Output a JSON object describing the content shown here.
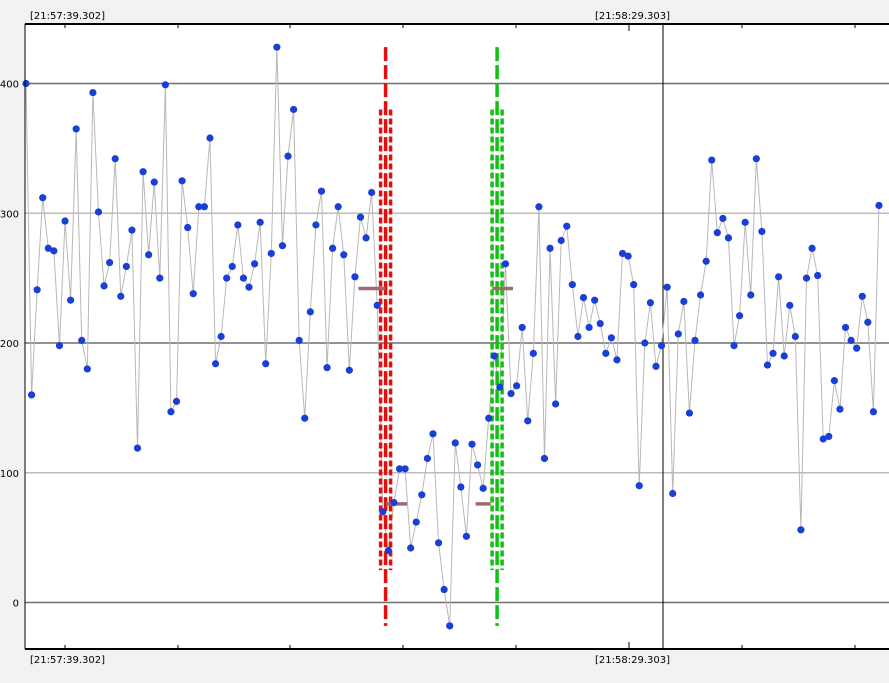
{
  "chart_data": {
    "type": "scatter",
    "connected": true,
    "title": "",
    "xlabel": "",
    "ylabel": "",
    "ylim": [
      -40,
      445
    ],
    "grid": true,
    "x_time_labels": {
      "top": [
        "[21:57:39.302]",
        "[21:58:29.303]"
      ],
      "bottom": [
        "[21:57:39.302]",
        "[21:58:29.303]"
      ]
    },
    "y_ticks": [
      0,
      100,
      200,
      300,
      400
    ],
    "colors": {
      "points": "#1a3fd6",
      "line": "#b8b8b8",
      "left_change_marker": "#e01010",
      "right_change_marker": "#12c012",
      "segment_mean": "#9b6e6e"
    },
    "series": [
      {
        "values": [
          400,
          160,
          241,
          312,
          273,
          271,
          198,
          294,
          233,
          365,
          202,
          180,
          393,
          301,
          244,
          262,
          342,
          236,
          259,
          287,
          119,
          332,
          268,
          324,
          250,
          399,
          147,
          155,
          325,
          289,
          238,
          305,
          305,
          358,
          184,
          205,
          250,
          259,
          291,
          250,
          243,
          261,
          293,
          184,
          269,
          428,
          275,
          344,
          380,
          202,
          142,
          224,
          291,
          317,
          181,
          273,
          305,
          268,
          179,
          251,
          297,
          281,
          316,
          229,
          70,
          40,
          77,
          103,
          103,
          42,
          62,
          83,
          111,
          130,
          46,
          10,
          -18,
          123,
          89,
          51,
          122,
          106,
          88,
          142,
          190,
          166,
          261,
          161,
          167,
          212,
          140,
          192,
          305,
          111,
          273,
          153,
          279,
          290,
          245,
          205,
          235,
          212,
          233,
          215,
          192,
          204,
          187,
          269,
          267,
          245,
          90,
          200,
          231,
          182,
          198,
          243,
          84,
          207,
          232,
          146,
          202,
          237,
          263,
          341,
          285,
          296,
          281,
          198,
          221,
          293,
          237,
          342,
          286,
          183,
          192,
          251,
          190,
          229,
          205,
          56,
          250,
          273,
          252,
          126,
          128,
          171,
          149,
          212,
          202,
          196,
          236,
          216,
          147,
          306
        ]
      }
    ],
    "segment_means": [
      {
        "from_index": 60,
        "to_index": 64,
        "value": 242
      },
      {
        "from_index": 65,
        "to_index": 68,
        "value": 76
      },
      {
        "from_index": 81,
        "to_index": 83,
        "value": 76
      },
      {
        "from_index": 84,
        "to_index": 87,
        "value": 242
      }
    ],
    "change_markers": [
      {
        "name": "left",
        "index": 64.5,
        "color_key": "left_change_marker",
        "y_range": [
          -18,
          428
        ],
        "inner_y_range": [
          25,
          380
        ]
      },
      {
        "name": "right",
        "index": 84.5,
        "color_key": "right_change_marker",
        "y_range": [
          -18,
          428
        ],
        "inner_y_range": [
          25,
          380
        ]
      }
    ]
  }
}
